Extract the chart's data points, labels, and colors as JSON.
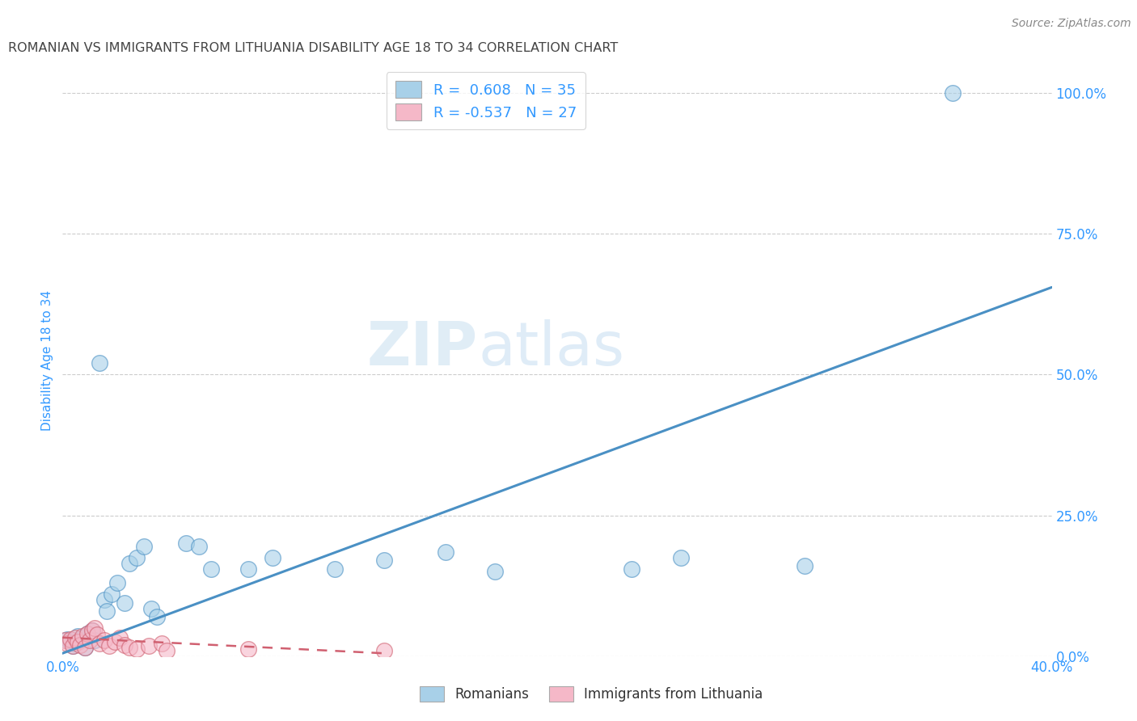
{
  "title": "ROMANIAN VS IMMIGRANTS FROM LITHUANIA DISABILITY AGE 18 TO 34 CORRELATION CHART",
  "source": "Source: ZipAtlas.com",
  "ylabel": "Disability Age 18 to 34",
  "xlim": [
    0.0,
    0.4
  ],
  "ylim": [
    0.0,
    1.05
  ],
  "xticks": [
    0.0,
    0.1,
    0.2,
    0.3,
    0.4
  ],
  "xtick_labels": [
    "0.0%",
    "",
    "",
    "",
    "40.0%"
  ],
  "ytick_labels_right": [
    "0.0%",
    "25.0%",
    "50.0%",
    "75.0%",
    "100.0%"
  ],
  "yticks_right": [
    0.0,
    0.25,
    0.5,
    0.75,
    1.0
  ],
  "background_color": "#ffffff",
  "grid_color": "#cccccc",
  "blue_color": "#a8d0e8",
  "pink_color": "#f5b8c8",
  "blue_line_color": "#4a90c4",
  "pink_line_color": "#d06070",
  "title_color": "#444444",
  "axis_label_color": "#3399ff",
  "legend_text_color": "#3399ff",
  "legend_r1": "R =  0.608   N = 35",
  "legend_r2": "R = -0.537   N = 27",
  "romanians_x": [
    0.002,
    0.003,
    0.004,
    0.005,
    0.006,
    0.007,
    0.008,
    0.009,
    0.01,
    0.012,
    0.013,
    0.015,
    0.017,
    0.018,
    0.02,
    0.022,
    0.025,
    0.027,
    0.03,
    0.033,
    0.036,
    0.038,
    0.05,
    0.055,
    0.06,
    0.075,
    0.085,
    0.11,
    0.13,
    0.155,
    0.175,
    0.23,
    0.25,
    0.3,
    0.36
  ],
  "romanians_y": [
    0.03,
    0.025,
    0.018,
    0.022,
    0.035,
    0.028,
    0.032,
    0.015,
    0.04,
    0.045,
    0.028,
    0.52,
    0.1,
    0.08,
    0.11,
    0.13,
    0.095,
    0.165,
    0.175,
    0.195,
    0.085,
    0.07,
    0.2,
    0.195,
    0.155,
    0.155,
    0.175,
    0.155,
    0.17,
    0.185,
    0.15,
    0.155,
    0.175,
    0.16,
    1.0
  ],
  "lithuania_x": [
    0.001,
    0.002,
    0.003,
    0.004,
    0.005,
    0.006,
    0.007,
    0.008,
    0.009,
    0.01,
    0.011,
    0.012,
    0.013,
    0.014,
    0.015,
    0.017,
    0.019,
    0.021,
    0.023,
    0.025,
    0.027,
    0.03,
    0.035,
    0.04,
    0.042,
    0.075,
    0.13
  ],
  "lithuania_y": [
    0.028,
    0.022,
    0.03,
    0.018,
    0.032,
    0.025,
    0.02,
    0.035,
    0.015,
    0.04,
    0.028,
    0.045,
    0.05,
    0.038,
    0.022,
    0.028,
    0.018,
    0.025,
    0.032,
    0.02,
    0.015,
    0.012,
    0.018,
    0.022,
    0.01,
    0.012,
    0.01
  ],
  "blue_trend_x": [
    0.0,
    0.4
  ],
  "blue_trend_y": [
    0.005,
    0.655
  ],
  "pink_trend_x": [
    0.0,
    0.13
  ],
  "pink_trend_y": [
    0.033,
    0.005
  ]
}
